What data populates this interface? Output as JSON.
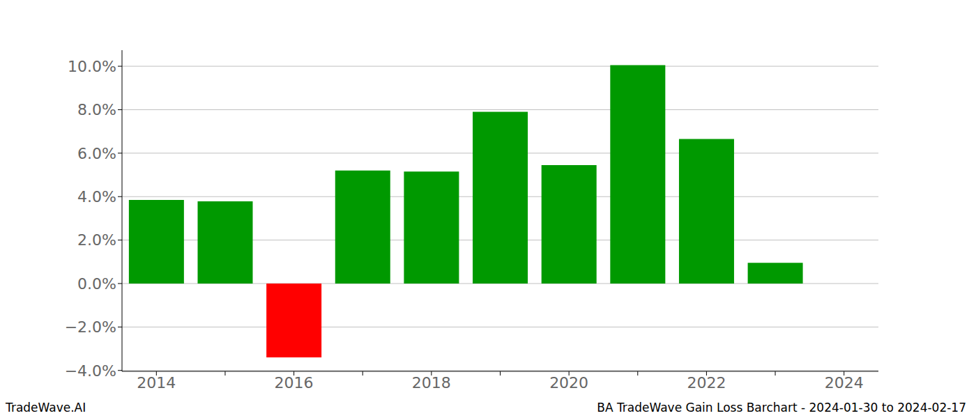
{
  "chart_data": {
    "type": "bar",
    "categories": [
      "2014",
      null,
      "2016",
      null,
      "2018",
      null,
      "2020",
      null,
      "2022",
      null,
      "2024"
    ],
    "values": [
      3.85,
      3.78,
      -3.4,
      5.2,
      5.15,
      7.9,
      5.45,
      10.05,
      6.65,
      0.95,
      null
    ],
    "colors": [
      "#009900",
      "#009900",
      "#ff0000",
      "#009900",
      "#009900",
      "#009900",
      "#009900",
      "#009900",
      "#009900",
      "#009900",
      null
    ],
    "ylim": [
      -4.04,
      10.74
    ],
    "yticks": [
      {
        "value": -4,
        "label": "−4.0%"
      },
      {
        "value": -2,
        "label": "−2.0%"
      },
      {
        "value": 0,
        "label": "0.0%"
      },
      {
        "value": 2,
        "label": "2.0%"
      },
      {
        "value": 4,
        "label": "4.0%"
      },
      {
        "value": 6,
        "label": "6.0%"
      },
      {
        "value": 8,
        "label": "8.0%"
      },
      {
        "value": 10,
        "label": "10.0%"
      }
    ],
    "grid": true,
    "annotations": [
      "TradeWave.AI",
      "BA TradeWave Gain Loss Barchart - 2024-01-30 to 2024-02-17"
    ]
  }
}
